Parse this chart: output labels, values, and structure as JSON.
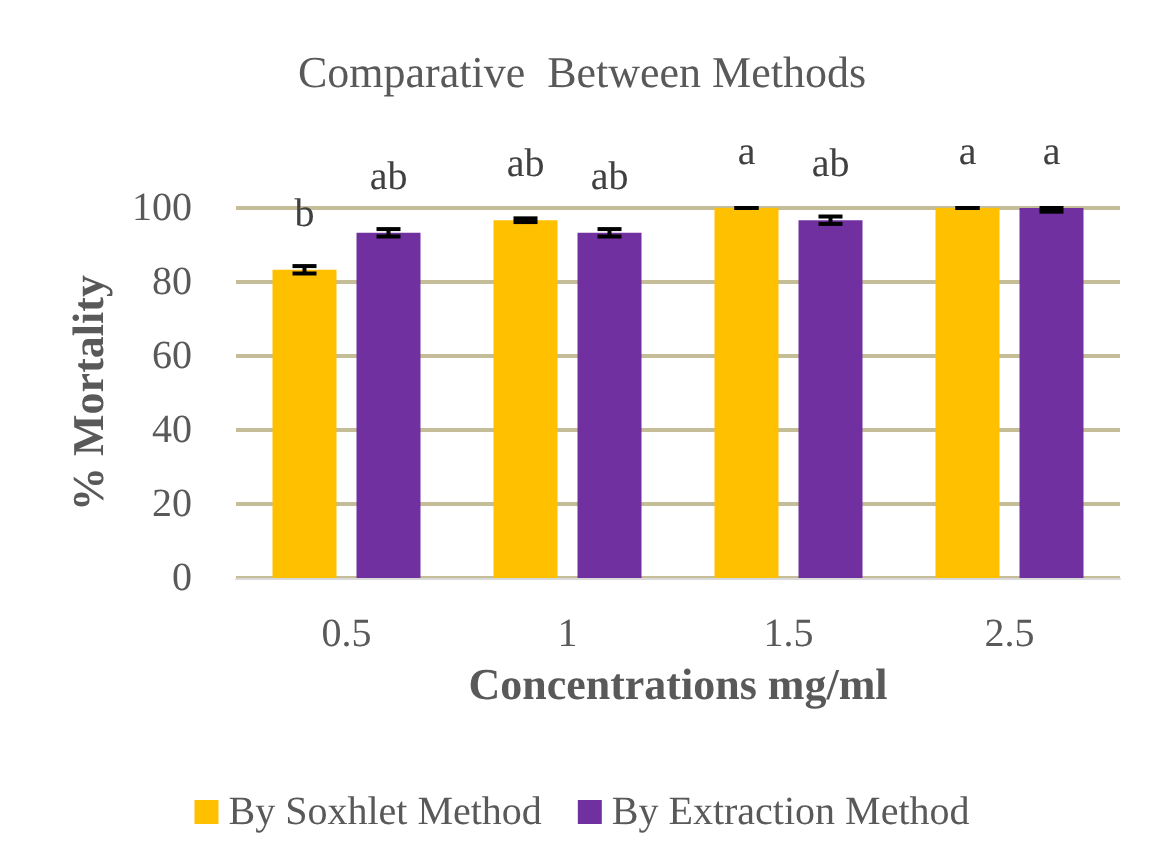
{
  "chart_data": {
    "type": "bar",
    "title": "Comparative  Between Methods",
    "xlabel": "Concentrations mg/ml",
    "ylabel": "% Mortality",
    "categories": [
      "0.5",
      "1",
      "1.5",
      "2.5"
    ],
    "series": [
      {
        "name": "By Soxhlet Method",
        "color": "#ffc000",
        "values": [
          83.3,
          96.7,
          100,
          100
        ],
        "errors": [
          1,
          0.5,
          [
            100,
            100
          ],
          [
            100,
            100
          ]
        ],
        "value_labels": [
          "b",
          "ab",
          "a",
          "a"
        ]
      },
      {
        "name": "By Extraction Method",
        "color": "#7030a0",
        "values": [
          93.3,
          93.3,
          96.7,
          100
        ],
        "errors": [
          1,
          1,
          1,
          [
            99,
            100
          ]
        ],
        "value_labels": [
          "ab",
          "ab",
          "ab",
          "a"
        ]
      }
    ],
    "ylim": [
      0,
      100
    ],
    "yticks": [
      0,
      20,
      40,
      60,
      80,
      100
    ],
    "grid": "y",
    "legend": "bottom"
  }
}
